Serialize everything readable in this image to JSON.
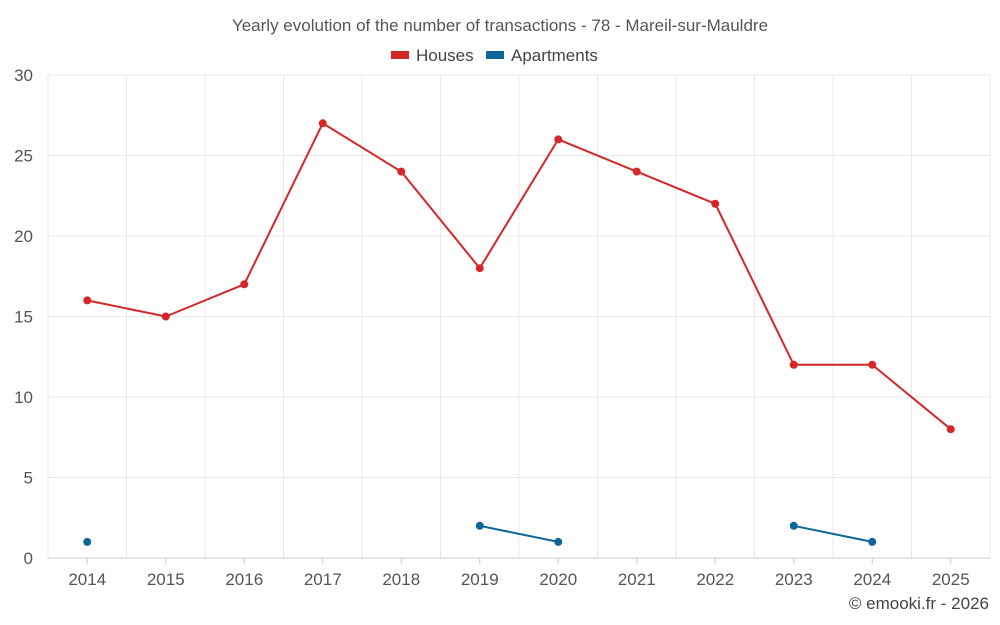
{
  "chart_data": {
    "type": "line",
    "title": "Yearly evolution of the number of transactions - 78 - Mareil-sur-Mauldre",
    "xlabel": "",
    "ylabel": "",
    "categories": [
      "2014",
      "2015",
      "2016",
      "2017",
      "2018",
      "2019",
      "2020",
      "2021",
      "2022",
      "2023",
      "2024",
      "2025"
    ],
    "ylim": [
      0,
      30
    ],
    "yticks": [
      0,
      5,
      10,
      15,
      20,
      25,
      30
    ],
    "grid": true,
    "legend_position": "top-center",
    "series": [
      {
        "name": "Houses",
        "color": "#d62728",
        "values": [
          16,
          15,
          17,
          27,
          24,
          18,
          26,
          24,
          22,
          12,
          12,
          8
        ]
      },
      {
        "name": "Apartments",
        "color": "#0e6699",
        "values": [
          1,
          null,
          null,
          null,
          null,
          2,
          1,
          null,
          null,
          2,
          1,
          null
        ]
      }
    ]
  },
  "credit": "© emooki.fr - 2026"
}
